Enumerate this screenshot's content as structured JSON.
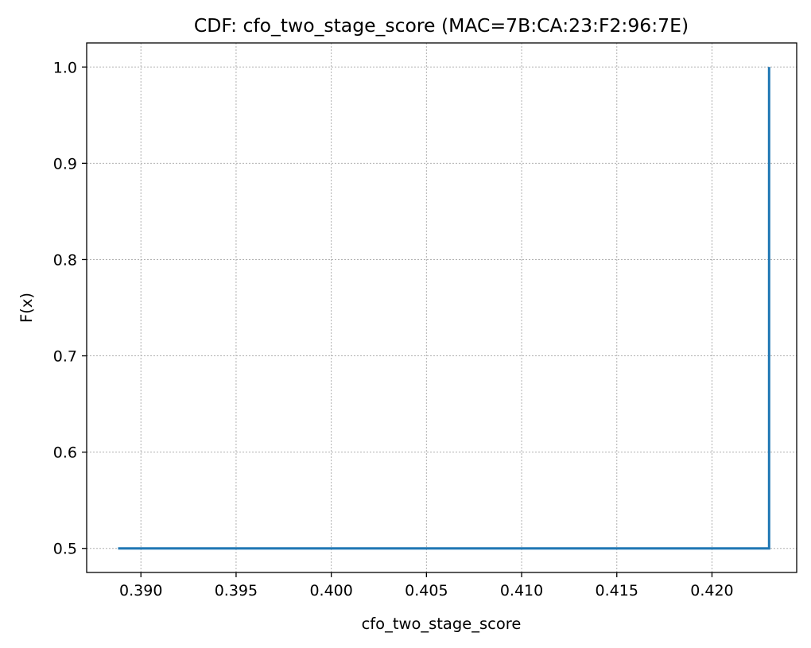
{
  "chart_data": {
    "type": "line",
    "title": "CDF: cfo_two_stage_score (MAC=7B:CA:23:F2:96:7E)",
    "xlabel": "cfo_two_stage_score",
    "ylabel": "F(x)",
    "xlim": [
      0.38715,
      0.42445
    ],
    "ylim": [
      0.475,
      1.025
    ],
    "xticks": [
      0.39,
      0.395,
      0.4,
      0.405,
      0.41,
      0.415,
      0.42
    ],
    "xtick_labels": [
      "0.390",
      "0.395",
      "0.400",
      "0.405",
      "0.410",
      "0.415",
      "0.420"
    ],
    "yticks": [
      0.5,
      0.6,
      0.7,
      0.8,
      0.9,
      1.0
    ],
    "ytick_labels": [
      "0.5",
      "0.6",
      "0.7",
      "0.8",
      "0.9",
      "1.0"
    ],
    "grid": true,
    "series": [
      {
        "name": "CDF",
        "color": "#1f77b4",
        "x": [
          0.3888,
          0.423,
          0.423
        ],
        "y": [
          0.5,
          0.5,
          1.0
        ]
      }
    ]
  }
}
